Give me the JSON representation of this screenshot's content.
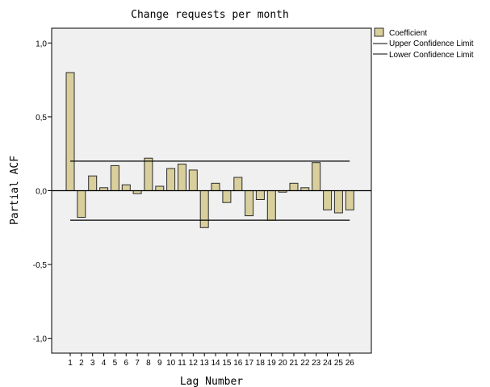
{
  "chart_data": {
    "type": "bar",
    "title": "Change requests per month",
    "xlabel": "Lag Number",
    "ylabel": "Partial ACF",
    "ylim": [
      -1.1,
      1.1
    ],
    "yticks": [
      "-1,0",
      "-0,5",
      "0,0",
      "0,5",
      "1,0"
    ],
    "ytick_values": [
      -1.0,
      -0.5,
      0.0,
      0.5,
      1.0
    ],
    "categories": [
      "1",
      "2",
      "3",
      "4",
      "5",
      "6",
      "7",
      "8",
      "9",
      "10",
      "11",
      "12",
      "13",
      "14",
      "15",
      "16",
      "17",
      "18",
      "19",
      "20",
      "21",
      "22",
      "23",
      "24",
      "25",
      "26"
    ],
    "series": [
      {
        "name": "Coefficient",
        "values": [
          0.8,
          -0.18,
          0.1,
          0.02,
          0.17,
          0.04,
          -0.02,
          0.22,
          0.03,
          0.15,
          0.18,
          0.14,
          -0.25,
          0.05,
          -0.08,
          0.09,
          -0.17,
          -0.06,
          -0.2,
          -0.01,
          0.05,
          0.02,
          0.19,
          -0.13,
          -0.15,
          -0.13
        ]
      }
    ],
    "upper_confidence_limit": 0.2,
    "lower_confidence_limit": -0.2,
    "grid": false,
    "legend_placement": "top-right",
    "legend": {
      "coefficient": "Coefficient",
      "upper": "Upper Confidence Limit",
      "lower": "Lower Confidence Limit"
    },
    "colors": {
      "plot_background": "#f0f0f0",
      "bar_fill": "#d9cf9c",
      "bar_stroke": "#2b2b2b",
      "line": "#000000"
    }
  }
}
